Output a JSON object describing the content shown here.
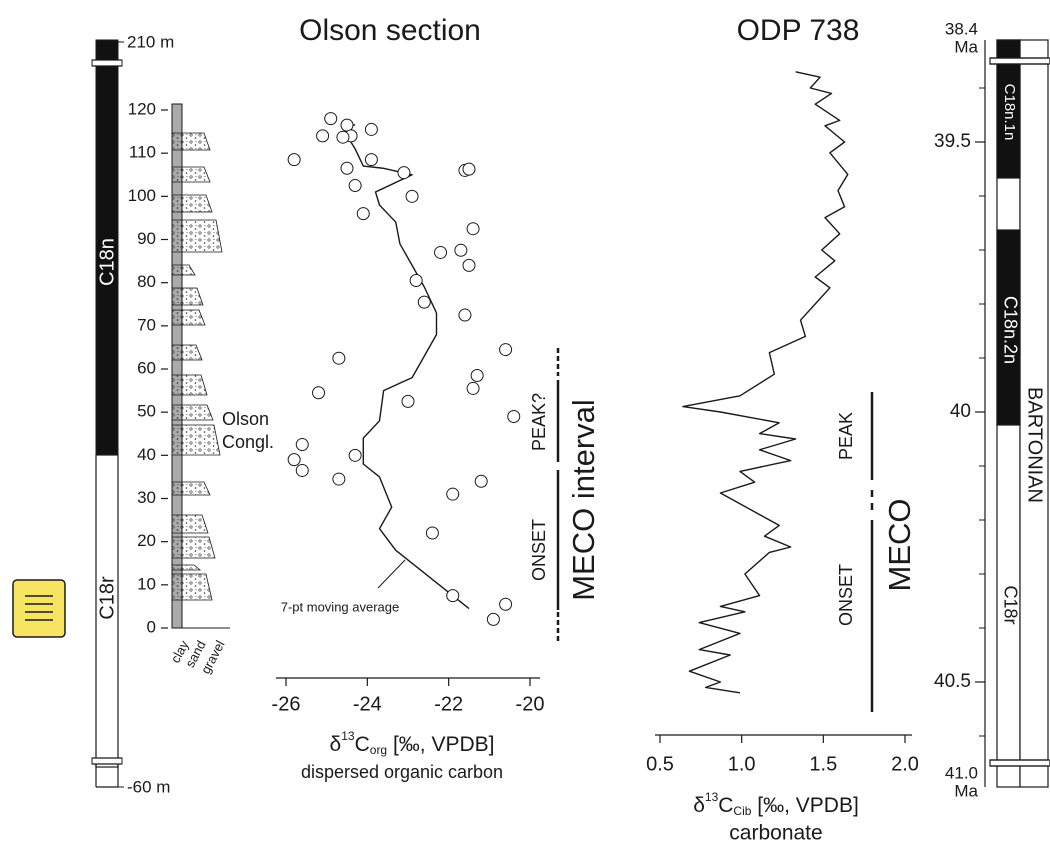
{
  "chart_data": [
    {
      "type": "scatter",
      "title": "Olson section",
      "x_label": {
        "prefix": "δ",
        "sup": "13",
        "main": "C",
        "sub": "org",
        "suffix": " [‰, VPDB]"
      },
      "x_sublabel": "dispersed organic carbon",
      "xlim": [
        -26,
        -20
      ],
      "xticks": [
        -26,
        -24,
        -22,
        -20
      ],
      "ylim": [
        0,
        120
      ],
      "yticks": [
        0,
        10,
        20,
        30,
        40,
        50,
        60,
        70,
        80,
        90,
        100,
        110,
        120
      ],
      "values": [
        -24.9,
        -24.5,
        -23.9,
        -24.4,
        -24.6,
        -25.1,
        -25.8,
        -23.9,
        -23.1,
        -24.5,
        -21.6,
        -21.5,
        -24.3,
        -22.9,
        -24.1,
        -21.4,
        -22.2,
        -21.7,
        -21.5,
        -22.8,
        -22.6,
        -21.6,
        -24.7,
        -21.3,
        -20.6,
        -21.4,
        -25.2,
        -23.0,
        -20.4,
        -25.6,
        -25.8,
        -24.3,
        -25.6,
        -24.7,
        -21.2,
        -21.9,
        -22.4,
        -21.9,
        -20.6,
        -20.9
      ],
      "depth": [
        118,
        116.5,
        115.5,
        114,
        113.7,
        114,
        108.5,
        108.5,
        105.5,
        106.5,
        106,
        106.3,
        102.5,
        100,
        96,
        92.5,
        87,
        87.5,
        84,
        80.5,
        75.5,
        72.5,
        62.5,
        58.5,
        64.5,
        55.5,
        54.5,
        52.5,
        49,
        42.5,
        39,
        40,
        36.5,
        34.5,
        34,
        31,
        22,
        7.5,
        5.5,
        2
      ],
      "moving_average": {
        "label": "7-pt moving average",
        "values": [
          -21.5,
          -22.5,
          -23.3,
          -23.7,
          -23.4,
          -23.7,
          -24.1,
          -24.1,
          -23.7,
          -23.6,
          -22.9,
          -22.6,
          -22.3,
          -22.3,
          -22.6,
          -22.9,
          -23.2,
          -23.3,
          -23.7,
          -23.8,
          -22.9,
          -23.6,
          -24.1,
          -24.3,
          -24.5,
          -24.5,
          -24.3
        ],
        "depth": [
          4.5,
          12,
          18,
          23,
          28,
          35,
          38,
          44,
          48,
          55,
          58,
          63,
          68,
          73,
          79,
          84,
          89,
          94,
          98,
          101,
          105,
          106.5,
          107,
          111,
          114,
          116,
          116.6
        ]
      },
      "meco_labels": [
        "PEAK?",
        "ONSET",
        "MECO interval"
      ],
      "lithology": {
        "grain_sizes": [
          "clay",
          "sand",
          "gravel"
        ],
        "unit": [
          "Olson",
          "Congl."
        ]
      },
      "magnetostratigraphy": {
        "top": "210 m",
        "bottom": "-60 m",
        "chrons": [
          "C18n",
          "C18r"
        ]
      }
    },
    {
      "type": "line",
      "title": "ODP 738",
      "x_label": {
        "prefix": "δ",
        "sup": "13",
        "main": "C",
        "sub": "Cib",
        "suffix": " [‰, VPDB]"
      },
      "x_sublabel": "carbonate",
      "xlim": [
        0.5,
        2.0
      ],
      "xticks": [
        0.5,
        {
          "value": 1,
          "label": "1.0"
        },
        1.5,
        {
          "value": 2,
          "label": "2.0"
        }
      ],
      "ylim": [
        39.35,
        40.65
      ],
      "yticks": [
        39.5,
        40,
        40.5
      ],
      "yminor": [
        39.4,
        39.6,
        39.7,
        39.8,
        39.9,
        40.1,
        40.2,
        40.3,
        40.4,
        40.6
      ],
      "axis_ends": {
        "top": [
          "38.4",
          "Ma"
        ],
        "bottom": [
          "41.0",
          "Ma"
        ]
      },
      "values": [
        1.33,
        1.48,
        1.42,
        1.55,
        1.45,
        1.6,
        1.51,
        1.63,
        1.54,
        1.65,
        1.59,
        1.63,
        1.51,
        1.6,
        1.49,
        1.57,
        1.45,
        1.54,
        1.45,
        1.36,
        1.39,
        1.17,
        1.2,
        0.99,
        0.64,
        0.87,
        1.23,
        1.11,
        1.33,
        1.11,
        1.3,
        0.99,
        1.08,
        0.87,
        1.11,
        1.23,
        1.14,
        1.3,
        1.17,
        1.02,
        1.11,
        0.87,
        1.02,
        0.74,
        0.99,
        0.74,
        0.93,
        0.68,
        0.87,
        0.78,
        0.99
      ],
      "age": [
        39.37,
        39.38,
        39.4,
        39.41,
        39.43,
        39.46,
        39.47,
        39.5,
        39.52,
        39.56,
        39.59,
        39.62,
        39.64,
        39.67,
        39.7,
        39.72,
        39.75,
        39.77,
        39.8,
        39.83,
        39.86,
        39.89,
        39.93,
        39.97,
        39.99,
        40.0,
        40.02,
        40.04,
        40.05,
        40.07,
        40.09,
        40.11,
        40.13,
        40.15,
        40.19,
        40.21,
        40.23,
        40.25,
        40.26,
        40.3,
        40.34,
        40.36,
        40.37,
        40.39,
        40.41,
        40.44,
        40.45,
        40.48,
        40.5,
        40.51,
        40.52
      ],
      "meco_labels": [
        "PEAK",
        "ONSET",
        "MECO"
      ],
      "magnetostratigraphy": {
        "chrons": [
          "C18n.1n",
          "C18n.2n",
          "C18r"
        ],
        "stage": "BARTONIAN"
      }
    }
  ]
}
